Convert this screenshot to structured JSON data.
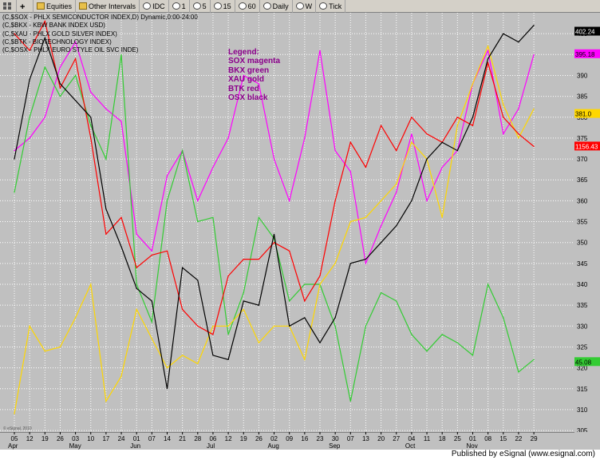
{
  "toolbar": {
    "equities_label": "Equities",
    "other_intervals_label": "Other Intervals",
    "idc_label": "IDC",
    "int1": "1",
    "int5": "5",
    "int15": "15",
    "int60": "60",
    "daily_label": "Daily",
    "weekly_label": "W",
    "tick_label": "Tick"
  },
  "header": {
    "lines": [
      "(C,$SOX - PHLX SEMICONDUCTOR INDEX,D) Dynamic,0:00-24:00",
      "(C,$BKX - KBW BANK INDEX USD)",
      "(C,$XAU - PHLX GOLD SILVER INDEX)",
      "(C,$BTK - BIOTECHNOLOGY INDEX)",
      "(C,$OSX - PHLX EURO STYLE OIL SVC INDE)"
    ]
  },
  "legend": {
    "title": "Legend:",
    "items": [
      "SOX magenta",
      "BKX green",
      "XAU gold",
      "BTK red",
      "OSX black"
    ]
  },
  "footer": {
    "published": "Published by eSignal (www.esignal.com)"
  },
  "copyright": "© eSignal, 2010",
  "colors": {
    "SOX": "#ff00ff",
    "BKX": "#33cc33",
    "XAU": "#ffd700",
    "BTK": "#ff0000",
    "OSX": "#000000",
    "background": "#c0c0c0",
    "grid": "#ffffff"
  },
  "chart_data": {
    "type": "line",
    "title": "(C,$SOX - PHLX SEMICONDUCTOR INDEX,D) Dynamic,0:00-24:00",
    "xlabel": "",
    "ylabel": "",
    "ylim": [
      301,
      405
    ],
    "grid": true,
    "y_ticks": [
      305,
      310,
      315,
      320,
      325,
      330,
      335,
      340,
      345,
      350,
      355,
      360,
      365,
      370,
      375,
      380,
      385,
      390,
      395,
      400
    ],
    "x_tick_labels": [
      "05",
      "12",
      "19",
      "26",
      "03",
      "10",
      "17",
      "24",
      "01",
      "07",
      "14",
      "21",
      "28",
      "06",
      "12",
      "19",
      "26",
      "02",
      "09",
      "16",
      "23",
      "30",
      "07",
      "13",
      "20",
      "27",
      "04",
      "11",
      "18",
      "25",
      "01",
      "08",
      "15",
      "22",
      "29"
    ],
    "month_labels": [
      "Apr",
      "May",
      "Jun",
      "Jul",
      "Aug",
      "Sep",
      "Oct",
      "Nov"
    ],
    "month_tick_index": [
      0,
      4,
      8,
      13,
      17,
      21,
      26,
      30
    ],
    "last_values": [
      {
        "series": "OSX",
        "label": "402.24"
      },
      {
        "series": "SOX",
        "label": "395.18"
      },
      {
        "series": "XAU",
        "label": "381.0"
      },
      {
        "series": "BTK",
        "label": "1156.43"
      },
      {
        "series": "BKX",
        "label": "45.08"
      }
    ],
    "series": [
      {
        "name": "SOX",
        "values": [
          372,
          375,
          380,
          392,
          398,
          386,
          382,
          379,
          352,
          348,
          366,
          372,
          360,
          368,
          375,
          390,
          388,
          370,
          360,
          375,
          396,
          372,
          367,
          345,
          354,
          362,
          376,
          360,
          368,
          372,
          388,
          396,
          376,
          382,
          395
        ]
      },
      {
        "name": "BKX",
        "values": [
          362,
          380,
          392,
          385,
          390,
          378,
          370,
          395,
          340,
          331,
          360,
          372,
          355,
          356,
          328,
          338,
          356,
          351,
          336,
          340,
          340,
          330,
          312,
          330,
          338,
          336,
          328,
          324,
          328,
          326,
          323,
          340,
          332,
          319,
          322
        ]
      },
      {
        "name": "XAU",
        "values": [
          309,
          330,
          324,
          325,
          332,
          340,
          312,
          318,
          334,
          327,
          320,
          323,
          321,
          330,
          330,
          334,
          326,
          330,
          330,
          322,
          340,
          345,
          355,
          356,
          360,
          364,
          374,
          370,
          356,
          378,
          388,
          397,
          383,
          375,
          382
        ]
      },
      {
        "name": "BTK",
        "values": [
          400,
          396,
          403,
          387,
          394,
          375,
          352,
          356,
          344,
          347,
          348,
          334,
          330,
          328,
          342,
          346,
          346,
          350,
          348,
          336,
          342,
          360,
          374,
          368,
          378,
          372,
          380,
          376,
          374,
          380,
          378,
          393,
          380,
          376,
          373
        ]
      },
      {
        "name": "OSX",
        "values": [
          370,
          389,
          399,
          388,
          384,
          380,
          358,
          349,
          339,
          336,
          315,
          344,
          341,
          323,
          322,
          336,
          335,
          352,
          330,
          332,
          326,
          332,
          345,
          346,
          350,
          354,
          360,
          370,
          374,
          372,
          380,
          394,
          400,
          398,
          402
        ]
      }
    ]
  }
}
